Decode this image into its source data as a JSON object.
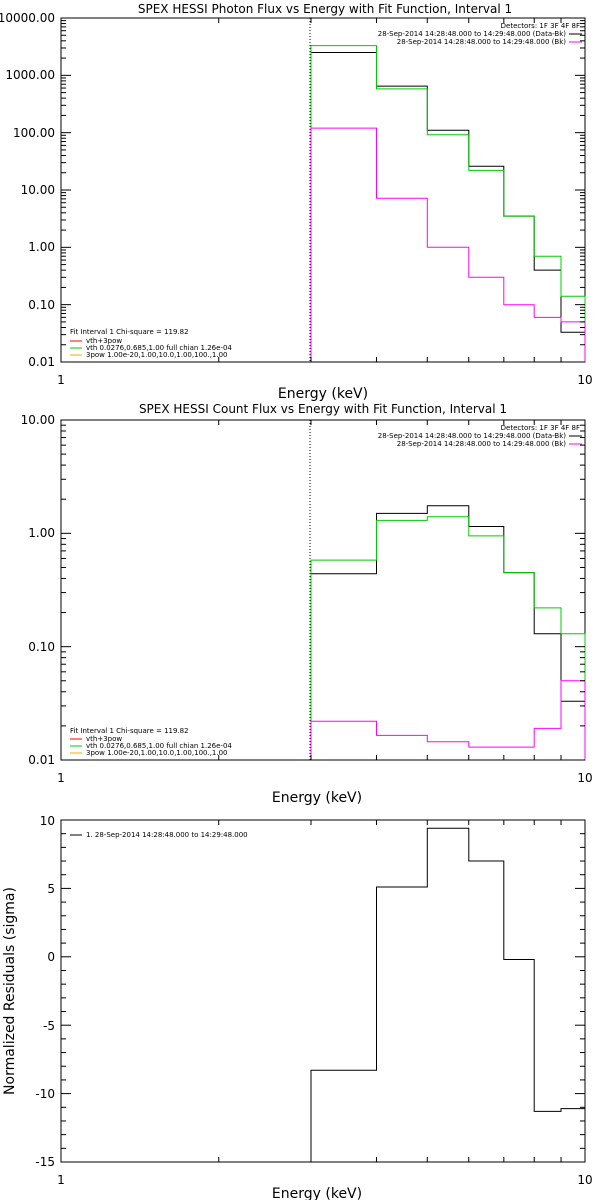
{
  "chart_data": [
    {
      "type": "line",
      "title": "SPEX HESSI Photon Flux vs Energy with Fit Function, Interval 1",
      "xlabel": "Energy (keV)",
      "ylabel": "",
      "x_scale": "log",
      "y_scale": "log",
      "xlim": [
        1,
        10
      ],
      "ylim": [
        0.01,
        10000
      ],
      "x_ticks": [
        "1",
        "10"
      ],
      "y_ticks": [
        "0.01",
        "0.10",
        "1.00",
        "10.00",
        "100.00",
        "1000.00",
        "10000.00"
      ],
      "vline_x": 3,
      "legend_top_right": [
        {
          "text": "Detectors: 1F 3F 4F 8F",
          "color": "#000000"
        },
        {
          "text": "28-Sep-2014 14:28:48.000 to 14:29:48.000 (Data-Bk)",
          "color": "#000000"
        },
        {
          "text": "28-Sep-2014 14:28:48.000 to 14:29:48.000 (Bk)",
          "color": "#ff00ff"
        }
      ],
      "legend_bottom_left": [
        {
          "text": "Fit Interval  1    Chi-square = 119.82",
          "color": "#000000"
        },
        {
          "text": "vth+3pow",
          "color": "#ff0000"
        },
        {
          "text": "vth 0.0276,0.685,1.00   full chian 1.26e-04",
          "color": "#00cc00"
        },
        {
          "text": "3pow 1.00e-20,1.00,10.0,1.00,100.,1.00",
          "color": "#ffaa00"
        }
      ],
      "bin_edges": [
        3,
        4,
        5,
        6,
        7,
        8,
        9,
        10
      ],
      "series": [
        {
          "name": "28-Sep-2014 14:28:48.000 to 14:29:48.000 (Data-Bk)",
          "color": "#000000",
          "values": [
            2500,
            650,
            110,
            26,
            3.5,
            0.4,
            0.033
          ]
        },
        {
          "name": "vth 0.0276,0.685,1.00   full chian 1.26e-04",
          "color": "#00cc00",
          "values": [
            3300,
            580,
            92,
            22,
            3.5,
            0.7,
            0.14
          ]
        },
        {
          "name": "28-Sep-2014 14:28:48.000 to 14:29:48.000 (Bk)",
          "color": "#ff00ff",
          "values": [
            120,
            7.2,
            1.0,
            0.3,
            0.1,
            0.06,
            0.05
          ]
        }
      ]
    },
    {
      "type": "line",
      "title": "SPEX HESSI Count Flux vs Energy with Fit Function, Interval 1",
      "xlabel": "Energy (keV)",
      "ylabel": "",
      "x_scale": "log",
      "y_scale": "log",
      "xlim": [
        1,
        10
      ],
      "ylim": [
        0.01,
        10
      ],
      "x_ticks": [
        "1",
        "10"
      ],
      "y_ticks": [
        "0.01",
        "0.10",
        "1.00",
        "10.00"
      ],
      "vline_x": 3,
      "legend_top_right": [
        {
          "text": "Detectors: 1F 3F 4F 8F",
          "color": "#000000"
        },
        {
          "text": "28-Sep-2014 14:28:48.000 to 14:29:48.000 (Data-Bk)",
          "color": "#000000"
        },
        {
          "text": "28-Sep-2014 14:28:48.000 to 14:29:48.000 (Bk)",
          "color": "#ff00ff"
        }
      ],
      "legend_bottom_left": [
        {
          "text": "Fit Interval  1    Chi-square = 119.82",
          "color": "#000000"
        },
        {
          "text": "vth+3pow",
          "color": "#ff0000"
        },
        {
          "text": "vth 0.0276,0.685,1.00   full chian 1.26e-04",
          "color": "#00cc00"
        },
        {
          "text": "3pow 1.00e-20,1.00,10.0,1.00,100.,1.00",
          "color": "#ffaa00"
        }
      ],
      "bin_edges": [
        3,
        4,
        5,
        6,
        7,
        8,
        9,
        10
      ],
      "series": [
        {
          "name": "28-Sep-2014 14:28:48.000 to 14:29:48.000 (Data-Bk)",
          "color": "#000000",
          "values": [
            0.44,
            1.5,
            1.75,
            1.15,
            0.45,
            0.13,
            0.033
          ]
        },
        {
          "name": "vth 0.0276,0.685,1.00   full chian 1.26e-04",
          "color": "#00cc00",
          "values": [
            0.58,
            1.3,
            1.4,
            0.95,
            0.45,
            0.22,
            0.13
          ]
        },
        {
          "name": "28-Sep-2014 14:28:48.000 to 14:29:48.000 (Bk)",
          "color": "#ff00ff",
          "values": [
            0.022,
            0.0165,
            0.0145,
            0.013,
            0.013,
            0.019,
            0.05
          ]
        }
      ]
    },
    {
      "type": "line",
      "title": "",
      "xlabel": "Energy (keV)",
      "ylabel": "Normalized Residuals (sigma)",
      "x_scale": "log",
      "y_scale": "linear",
      "xlim": [
        1,
        10
      ],
      "ylim": [
        -15,
        10
      ],
      "x_ticks": [
        "1",
        "10"
      ],
      "y_ticks": [
        "10",
        "5",
        "0",
        "-5",
        "-10",
        "-15"
      ],
      "legend_top_left": [
        {
          "text": "1. 28-Sep-2014 14:28:48.000 to 14:29:48.000",
          "color": "#000000"
        }
      ],
      "bin_edges": [
        3,
        4,
        5,
        6,
        7,
        8,
        9,
        10
      ],
      "series": [
        {
          "name": "1. 28-Sep-2014 14:28:48.000 to 14:29:48.000",
          "color": "#000000",
          "values": [
            -8.3,
            5.1,
            9.4,
            7.0,
            -0.2,
            -11.3,
            -11.1
          ]
        }
      ]
    }
  ]
}
